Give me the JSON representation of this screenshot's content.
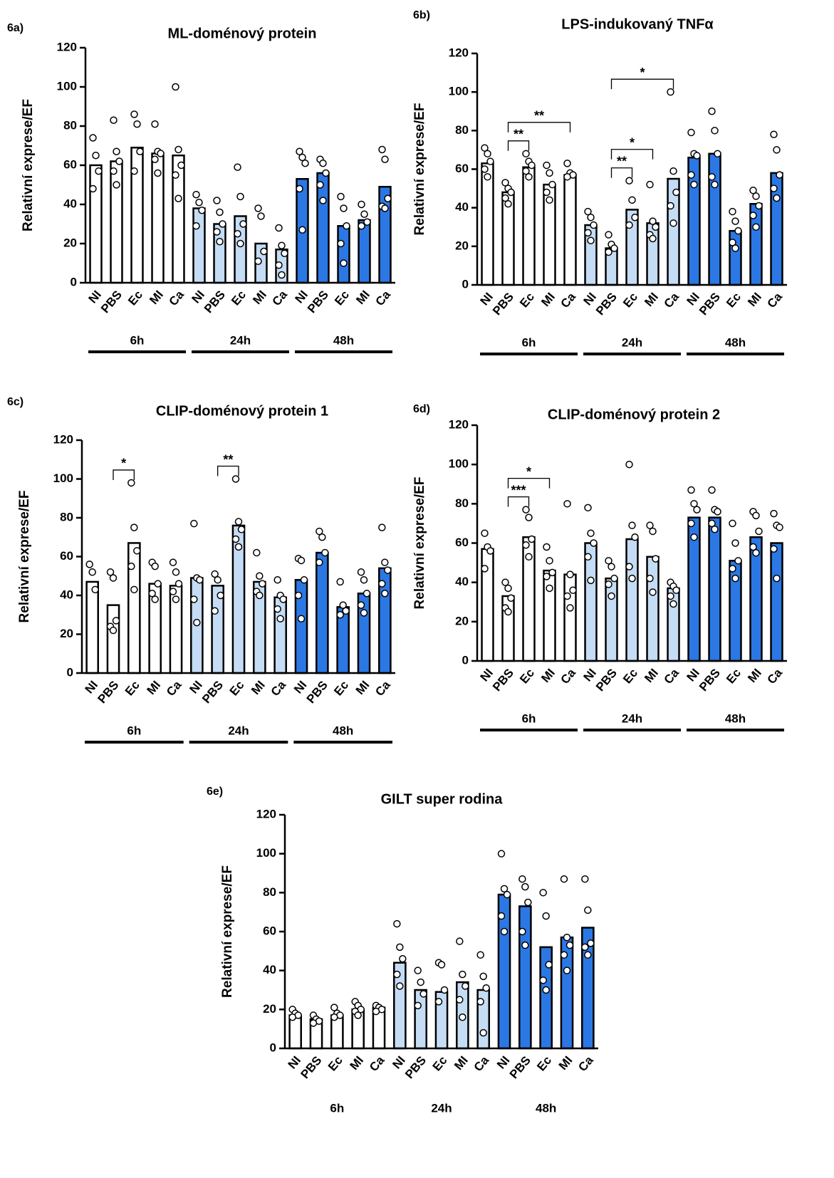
{
  "chart_data": [
    {
      "type": "bar",
      "panel": "6a)",
      "title": "ML-doménový protein",
      "ylabel": "Relativní exprese/EF",
      "categories": [
        "NI",
        "PBS",
        "Ec",
        "MI",
        "Ca",
        "NI",
        "PBS",
        "Ec",
        "MI",
        "Ca",
        "NI",
        "PBS",
        "Ec",
        "MI",
        "Ca"
      ],
      "groups": [
        "6h",
        "24h",
        "48h"
      ],
      "group_colors": [
        "#ffffff",
        "#c5dcf5",
        "#2b78e4"
      ],
      "group_lines": true,
      "values": [
        60,
        62,
        69,
        66,
        65,
        38,
        30,
        34,
        20,
        17,
        53,
        56,
        29,
        32,
        49
      ],
      "points": [
        [
          74,
          65,
          57,
          48
        ],
        [
          83,
          67,
          62,
          57,
          50
        ],
        [
          86,
          81,
          67,
          57
        ],
        [
          81,
          67,
          66,
          63,
          56
        ],
        [
          100,
          68,
          60,
          55,
          43
        ],
        [
          45,
          41,
          37,
          29
        ],
        [
          42,
          36,
          30,
          26,
          21
        ],
        [
          59,
          44,
          30,
          25,
          20
        ],
        [
          38,
          34,
          16,
          11
        ],
        [
          28,
          19,
          15,
          9,
          4
        ],
        [
          67,
          64,
          61,
          48,
          27
        ],
        [
          63,
          61,
          56,
          50,
          42
        ],
        [
          44,
          38,
          29,
          20,
          10
        ],
        [
          40,
          35,
          31,
          29
        ],
        [
          68,
          63,
          43,
          39,
          38
        ]
      ],
      "ylim": [
        0,
        120
      ],
      "yticks": [
        0,
        20,
        40,
        60,
        80,
        100,
        120
      ],
      "annotations": []
    },
    {
      "type": "bar",
      "panel": "6b)",
      "title": "LPS-indukovaný TNFα",
      "ylabel": "Relativní exprese/EF",
      "categories": [
        "NI",
        "PBS",
        "Ec",
        "MI",
        "Ca",
        "NI",
        "PBS",
        "Ec",
        "MI",
        "Ca",
        "NI",
        "PBS",
        "Ec",
        "MI",
        "Ca"
      ],
      "groups": [
        "6h",
        "24h",
        "48h"
      ],
      "group_colors": [
        "#ffffff",
        "#c5dcf5",
        "#2b78e4"
      ],
      "group_lines": true,
      "values": [
        63,
        48,
        61,
        52,
        57,
        31,
        19,
        39,
        32,
        55,
        66,
        68,
        28,
        42,
        58
      ],
      "points": [
        [
          71,
          68,
          64,
          60,
          56
        ],
        [
          53,
          50,
          48,
          45,
          42
        ],
        [
          68,
          64,
          62,
          59,
          56
        ],
        [
          62,
          58,
          52,
          48,
          44
        ],
        [
          63,
          58,
          57,
          56
        ],
        [
          38,
          35,
          31,
          27,
          23
        ],
        [
          26,
          21,
          19,
          17
        ],
        [
          54,
          44,
          35,
          31
        ],
        [
          52,
          33,
          30,
          26,
          24
        ],
        [
          100,
          59,
          48,
          41,
          32
        ],
        [
          79,
          68,
          67,
          57,
          52
        ],
        [
          90,
          80,
          68,
          56,
          52
        ],
        [
          38,
          33,
          28,
          22,
          19
        ],
        [
          49,
          46,
          41,
          36,
          30
        ],
        [
          78,
          70,
          57,
          50,
          45
        ]
      ],
      "ylim": [
        0,
        120
      ],
      "yticks": [
        0,
        20,
        40,
        60,
        80,
        100,
        120
      ],
      "annotations": [
        {
          "from": 1,
          "to": 2,
          "label": "**"
        },
        {
          "from": 1,
          "to": 4,
          "label": "**"
        },
        {
          "from": 6,
          "to": 7,
          "label": "**"
        },
        {
          "from": 6,
          "to": 8,
          "label": "*"
        },
        {
          "from": 6,
          "to": 9,
          "label": "*"
        }
      ]
    },
    {
      "type": "bar",
      "panel": "6c)",
      "title": "CLIP-doménový protein 1",
      "ylabel": "Relativní exprese/EF",
      "categories": [
        "NI",
        "PBS",
        "Ec",
        "MI",
        "Ca",
        "NI",
        "PBS",
        "Ec",
        "MI",
        "Ca",
        "NI",
        "PBS",
        "Ec",
        "MI",
        "Ca"
      ],
      "groups": [
        "6h",
        "24h",
        "48h"
      ],
      "group_colors": [
        "#ffffff",
        "#c5dcf5",
        "#2b78e4"
      ],
      "group_lines": true,
      "values": [
        47,
        35,
        67,
        46,
        45,
        49,
        45,
        76,
        47,
        39,
        48,
        62,
        34,
        41,
        54
      ],
      "points": [
        [
          56,
          52,
          43
        ],
        [
          52,
          49,
          27,
          24,
          22
        ],
        [
          98,
          75,
          63,
          55,
          43
        ],
        [
          57,
          55,
          46,
          41,
          38
        ],
        [
          57,
          52,
          46,
          42,
          38
        ],
        [
          77,
          49,
          48,
          38,
          26
        ],
        [
          51,
          48,
          40,
          32
        ],
        [
          100,
          78,
          74,
          69,
          65
        ],
        [
          62,
          50,
          46,
          42,
          40
        ],
        [
          48,
          40,
          38,
          33,
          28
        ],
        [
          59,
          58,
          48,
          40,
          28
        ],
        [
          73,
          70,
          62,
          57
        ],
        [
          47,
          35,
          32,
          30
        ],
        [
          52,
          48,
          41,
          35,
          31
        ],
        [
          75,
          57,
          53,
          46,
          41
        ]
      ],
      "ylim": [
        0,
        120
      ],
      "yticks": [
        0,
        20,
        40,
        60,
        80,
        100,
        120
      ],
      "annotations": [
        {
          "from": 1,
          "to": 2,
          "label": "*"
        },
        {
          "from": 6,
          "to": 7,
          "label": "**"
        }
      ]
    },
    {
      "type": "bar",
      "panel": "6d)",
      "title": "CLIP-doménový protein 2",
      "ylabel": "Relativní exprese/EF",
      "categories": [
        "NI",
        "PBS",
        "Ec",
        "MI",
        "Ca",
        "NI",
        "PBS",
        "Ec",
        "MI",
        "Ca",
        "NI",
        "PBS",
        "Ec",
        "MI",
        "Ca"
      ],
      "groups": [
        "6h",
        "24h",
        "48h"
      ],
      "group_colors": [
        "#ffffff",
        "#c5dcf5",
        "#2b78e4"
      ],
      "group_lines": true,
      "values": [
        57,
        33,
        63,
        46,
        44,
        60,
        42,
        62,
        53,
        37,
        73,
        73,
        51,
        63,
        60
      ],
      "points": [
        [
          65,
          58,
          56,
          47
        ],
        [
          40,
          37,
          32,
          27,
          25
        ],
        [
          77,
          73,
          62,
          59,
          53
        ],
        [
          58,
          51,
          45,
          43,
          37
        ],
        [
          80,
          44,
          36,
          33,
          27
        ],
        [
          78,
          65,
          60,
          53,
          41
        ],
        [
          51,
          48,
          42,
          39,
          33
        ],
        [
          100,
          69,
          63,
          48,
          42
        ],
        [
          69,
          66,
          52,
          42,
          35
        ],
        [
          40,
          38,
          36,
          33,
          29
        ],
        [
          87,
          80,
          77,
          70,
          63
        ],
        [
          87,
          77,
          76,
          70,
          67
        ],
        [
          70,
          60,
          51,
          47,
          42
        ],
        [
          76,
          74,
          66,
          58,
          55
        ],
        [
          75,
          69,
          68,
          57,
          42
        ]
      ],
      "ylim": [
        0,
        120
      ],
      "yticks": [
        0,
        20,
        40,
        60,
        80,
        100,
        120
      ],
      "annotations": [
        {
          "from": 1,
          "to": 2,
          "label": "***"
        },
        {
          "from": 1,
          "to": 3,
          "label": "*"
        }
      ]
    },
    {
      "type": "bar",
      "panel": "6e)",
      "title": "GILT super rodina",
      "ylabel": "Relativní exprese/EF",
      "categories": [
        "NI",
        "PBS",
        "Ec",
        "MI",
        "Ca",
        "NI",
        "PBS",
        "Ec",
        "MI",
        "Ca",
        "NI",
        "PBS",
        "Ec",
        "MI",
        "Ca"
      ],
      "groups": [
        "6h",
        "24h",
        "48h"
      ],
      "group_colors": [
        "#ffffff",
        "#c5dcf5",
        "#2b78e4"
      ],
      "group_lines": false,
      "values": [
        17,
        15,
        17,
        20,
        21,
        44,
        30,
        29,
        34,
        30,
        79,
        73,
        52,
        57,
        62
      ],
      "points": [
        [
          20,
          18,
          17,
          16
        ],
        [
          17,
          15,
          14,
          13
        ],
        [
          21,
          18,
          17,
          16
        ],
        [
          24,
          22,
          20,
          19,
          17
        ],
        [
          22,
          21,
          20,
          19
        ],
        [
          64,
          52,
          46,
          38,
          32
        ],
        [
          40,
          34,
          28,
          22
        ],
        [
          44,
          43,
          30,
          24
        ],
        [
          55,
          38,
          32,
          25,
          16
        ],
        [
          48,
          37,
          31,
          24,
          8
        ],
        [
          100,
          82,
          79,
          68,
          60
        ],
        [
          87,
          83,
          75,
          60,
          53
        ],
        [
          80,
          68,
          43,
          35,
          30
        ],
        [
          87,
          57,
          53,
          48,
          40
        ],
        [
          87,
          71,
          54,
          52,
          48
        ]
      ],
      "ylim": [
        0,
        120
      ],
      "yticks": [
        0,
        20,
        40,
        60,
        80,
        100,
        120
      ],
      "annotations": []
    }
  ]
}
